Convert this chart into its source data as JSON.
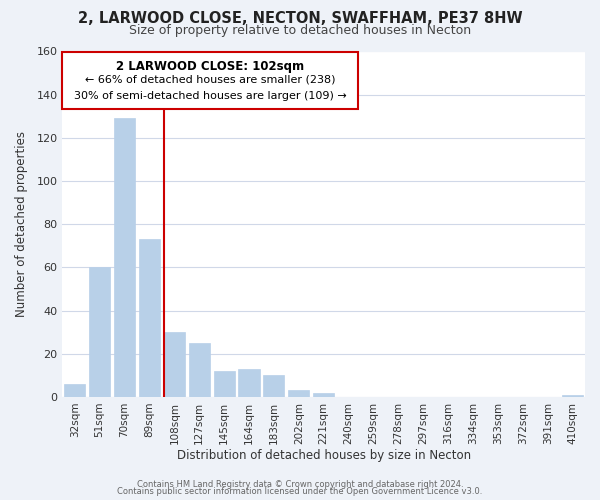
{
  "title": "2, LARWOOD CLOSE, NECTON, SWAFFHAM, PE37 8HW",
  "subtitle": "Size of property relative to detached houses in Necton",
  "xlabel": "Distribution of detached houses by size in Necton",
  "ylabel": "Number of detached properties",
  "categories": [
    "32sqm",
    "51sqm",
    "70sqm",
    "89sqm",
    "108sqm",
    "127sqm",
    "145sqm",
    "164sqm",
    "183sqm",
    "202sqm",
    "221sqm",
    "240sqm",
    "259sqm",
    "278sqm",
    "297sqm",
    "316sqm",
    "334sqm",
    "353sqm",
    "372sqm",
    "391sqm",
    "410sqm"
  ],
  "values": [
    6,
    60,
    129,
    73,
    30,
    25,
    12,
    13,
    10,
    3,
    2,
    0,
    0,
    0,
    0,
    0,
    0,
    0,
    0,
    0,
    1
  ],
  "bar_color": "#b8d0e8",
  "highlight_index": 4,
  "highlight_color": "#cc0000",
  "ylim": [
    0,
    160
  ],
  "yticks": [
    0,
    20,
    40,
    60,
    80,
    100,
    120,
    140,
    160
  ],
  "annotation_title": "2 LARWOOD CLOSE: 102sqm",
  "annotation_line1": "← 66% of detached houses are smaller (238)",
  "annotation_line2": "30% of semi-detached houses are larger (109) →",
  "footer1": "Contains HM Land Registry data © Crown copyright and database right 2024.",
  "footer2": "Contains public sector information licensed under the Open Government Licence v3.0.",
  "background_color": "#eef2f8",
  "plot_background_color": "#ffffff",
  "grid_color": "#d0d8e8"
}
